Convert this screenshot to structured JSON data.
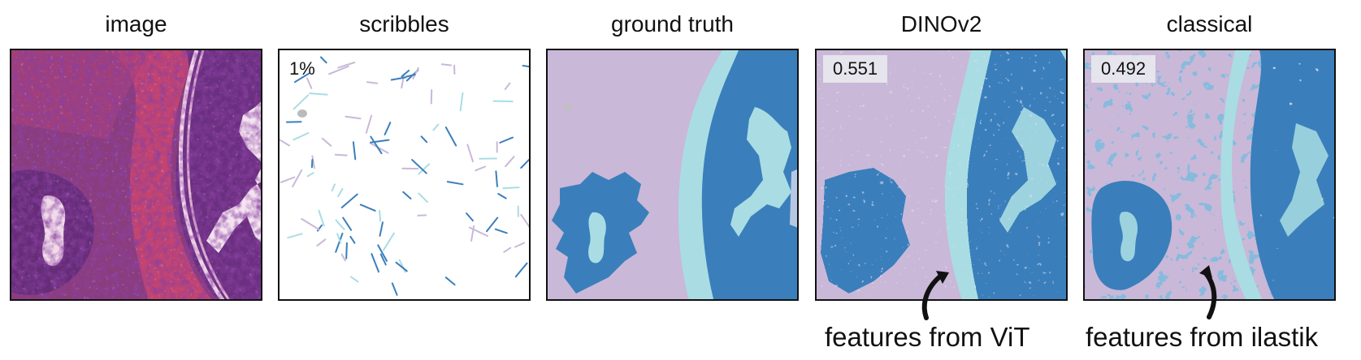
{
  "panels": [
    {
      "title": "image"
    },
    {
      "title": "scribbles",
      "label": "1%"
    },
    {
      "title": "ground truth"
    },
    {
      "title": "DINOv2",
      "score": "0.551"
    },
    {
      "title": "classical",
      "score": "0.492"
    }
  ],
  "annotations": {
    "dinov2": "features from ViT",
    "classical": "features from ilastik"
  },
  "colors": {
    "lavender": "#c9b8d8",
    "dark_blue": "#3a7fbb",
    "cyan": "#a9dde3",
    "tissue_pink": "#a8366e",
    "tissue_purple": "#6b2f7a"
  }
}
